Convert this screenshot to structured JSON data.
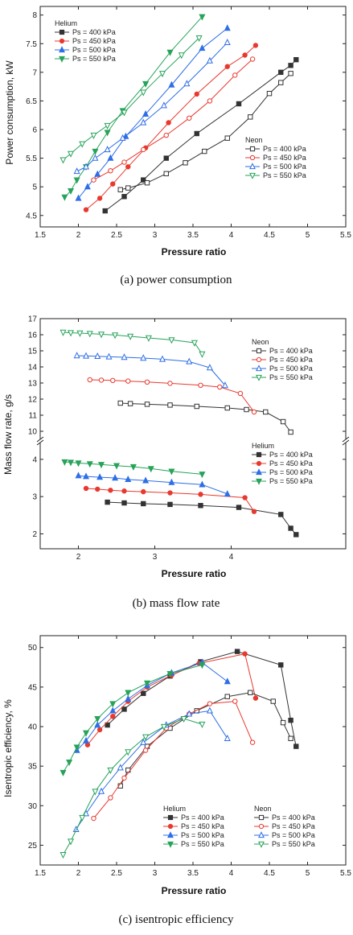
{
  "chart_data": [
    {
      "id": "a",
      "type": "line",
      "caption": "(a)  power  consumption",
      "xlabel": "Pressure ratio",
      "ylabel": "Power consumption, kW",
      "xlim": [
        1.5,
        5.5
      ],
      "ylim": [
        4.3,
        8.15
      ],
      "xticks": [
        "1.5",
        "2",
        "2.5",
        "3",
        "3.5",
        "4",
        "4.5",
        "5",
        "5.5"
      ],
      "xtick_values": [
        1.5,
        2,
        2.5,
        3,
        3.5,
        4,
        4.5,
        5,
        5.5
      ],
      "yticks": [
        "4.5",
        "5",
        "5.5",
        "6",
        "6.5",
        "7",
        "7.5",
        "8"
      ],
      "ytick_values": [
        4.5,
        5,
        5.5,
        6,
        6.5,
        7,
        7.5,
        8
      ],
      "legend_groups": [
        {
          "title": "Helium",
          "position": "top-left",
          "filled": true,
          "series_idx": [
            0,
            1,
            2,
            3
          ]
        },
        {
          "title": "Neon",
          "position": "middle-right",
          "filled": false,
          "series_idx": [
            4,
            5,
            6,
            7
          ]
        }
      ],
      "series": [
        {
          "name": "Ps = 400 kPa",
          "color": "#333333",
          "marker": "square",
          "filled": true,
          "x": [
            2.35,
            2.6,
            2.85,
            3.15,
            3.55,
            4.1,
            4.65,
            4.78,
            4.85
          ],
          "y": [
            4.58,
            4.83,
            5.12,
            5.5,
            5.93,
            6.45,
            7.0,
            7.12,
            7.22
          ]
        },
        {
          "name": "Ps = 450 kPa",
          "color": "#e8392f",
          "marker": "circle",
          "filled": true,
          "x": [
            2.1,
            2.28,
            2.45,
            2.65,
            2.88,
            3.18,
            3.55,
            3.95,
            4.18,
            4.32
          ],
          "y": [
            4.6,
            4.8,
            5.05,
            5.35,
            5.68,
            6.12,
            6.62,
            7.1,
            7.3,
            7.47
          ]
        },
        {
          "name": "Ps = 500 kPa",
          "color": "#2e6ee6",
          "marker": "triangle-up",
          "filled": true,
          "x": [
            2.0,
            2.12,
            2.25,
            2.42,
            2.62,
            2.88,
            3.22,
            3.62,
            3.95
          ],
          "y": [
            4.8,
            5.0,
            5.22,
            5.5,
            5.88,
            6.27,
            6.78,
            7.42,
            7.77
          ]
        },
        {
          "name": "Ps = 550 kPa",
          "color": "#27a35a",
          "marker": "triangle-down",
          "filled": true,
          "x": [
            1.82,
            1.9,
            1.98,
            2.1,
            2.22,
            2.38,
            2.58,
            2.88,
            3.2,
            3.62
          ],
          "y": [
            4.82,
            4.93,
            5.12,
            5.35,
            5.62,
            5.95,
            6.33,
            6.8,
            7.35,
            7.97
          ]
        },
        {
          "name": "Ps = 400 kPa",
          "color": "#333333",
          "marker": "square",
          "filled": false,
          "x": [
            2.55,
            2.65,
            2.9,
            3.15,
            3.4,
            3.65,
            3.95,
            4.25,
            4.5,
            4.65,
            4.78
          ],
          "y": [
            4.95,
            4.98,
            5.07,
            5.23,
            5.42,
            5.62,
            5.85,
            6.22,
            6.63,
            6.82,
            6.98
          ]
        },
        {
          "name": "Ps = 450 kPa",
          "color": "#e8392f",
          "marker": "circle",
          "filled": false,
          "x": [
            2.2,
            2.42,
            2.6,
            2.85,
            3.15,
            3.45,
            3.72,
            4.05,
            4.28
          ],
          "y": [
            5.12,
            5.28,
            5.43,
            5.65,
            5.9,
            6.2,
            6.5,
            6.95,
            7.23
          ]
        },
        {
          "name": "Ps = 500 kPa",
          "color": "#2e6ee6",
          "marker": "triangle-up",
          "filled": false,
          "x": [
            1.98,
            2.1,
            2.22,
            2.38,
            2.58,
            2.85,
            3.12,
            3.42,
            3.72,
            3.95
          ],
          "y": [
            5.27,
            5.35,
            5.5,
            5.65,
            5.85,
            6.12,
            6.42,
            6.8,
            7.2,
            7.52
          ]
        },
        {
          "name": "Ps = 550 kPa",
          "color": "#27a35a",
          "marker": "triangle-down",
          "filled": false,
          "x": [
            1.8,
            1.9,
            2.05,
            2.2,
            2.38,
            2.6,
            2.85,
            3.1,
            3.35,
            3.58
          ],
          "y": [
            5.47,
            5.58,
            5.75,
            5.9,
            6.07,
            6.3,
            6.65,
            6.98,
            7.3,
            7.6
          ]
        }
      ]
    },
    {
      "id": "b",
      "type": "line",
      "caption": "(b)  mass  flow  rate",
      "xlabel": "Pressure ratio",
      "ylabel": "Mass flow rate, g/s",
      "xlim": [
        1.5,
        5.5
      ],
      "segments": [
        {
          "ylim": [
            9.5,
            17.0
          ],
          "yticks": [
            "10",
            "11",
            "12",
            "13",
            "14",
            "15",
            "16",
            "17"
          ],
          "ytick_values": [
            10,
            11,
            12,
            13,
            14,
            15,
            16,
            17
          ]
        },
        {
          "ylim": [
            1.6,
            4.45
          ],
          "yticks": [
            "2",
            "3",
            "4"
          ],
          "ytick_values": [
            2,
            3,
            4
          ]
        }
      ],
      "xticks": [
        "2",
        "3",
        "4"
      ],
      "xtick_values": [
        2,
        3,
        4
      ],
      "legend_groups": [
        {
          "title": "Neon",
          "position": "top-right",
          "filled": false,
          "series_idx": [
            4,
            5,
            6,
            7
          ]
        },
        {
          "title": "Helium",
          "position": "middle-right",
          "filled": true,
          "series_idx": [
            0,
            1,
            2,
            3
          ]
        }
      ],
      "series": [
        {
          "name": "Ps = 400 kPa",
          "color": "#333333",
          "marker": "square",
          "filled": true,
          "segment": 1,
          "x": [
            2.38,
            2.6,
            2.85,
            3.2,
            3.6,
            4.1,
            4.65,
            4.78,
            4.85
          ],
          "y": [
            2.85,
            2.83,
            2.81,
            2.79,
            2.76,
            2.71,
            2.52,
            2.15,
            1.98
          ]
        },
        {
          "name": "Ps = 450 kPa",
          "color": "#e8392f",
          "marker": "circle",
          "filled": true,
          "segment": 1,
          "x": [
            2.1,
            2.25,
            2.42,
            2.6,
            2.85,
            3.2,
            3.6,
            4.18,
            4.3
          ],
          "y": [
            3.22,
            3.2,
            3.17,
            3.15,
            3.13,
            3.1,
            3.06,
            2.97,
            2.6
          ]
        },
        {
          "name": "Ps = 500 kPa",
          "color": "#2e6ee6",
          "marker": "triangle-up",
          "filled": true,
          "segment": 1,
          "x": [
            2.0,
            2.1,
            2.28,
            2.48,
            2.65,
            2.88,
            3.22,
            3.62,
            3.95
          ],
          "y": [
            3.56,
            3.54,
            3.52,
            3.5,
            3.46,
            3.43,
            3.38,
            3.32,
            3.07
          ]
        },
        {
          "name": "Ps = 550 kPa",
          "color": "#27a35a",
          "marker": "triangle-down",
          "filled": true,
          "segment": 1,
          "x": [
            1.82,
            1.9,
            2.0,
            2.15,
            2.3,
            2.5,
            2.72,
            2.95,
            3.22,
            3.62
          ],
          "y": [
            3.93,
            3.92,
            3.9,
            3.88,
            3.86,
            3.83,
            3.8,
            3.75,
            3.68,
            3.6
          ]
        },
        {
          "name": "Ps = 400 kPa",
          "color": "#333333",
          "marker": "square",
          "filled": false,
          "segment": 0,
          "x": [
            2.55,
            2.68,
            2.9,
            3.2,
            3.55,
            3.95,
            4.2,
            4.45,
            4.68,
            4.78
          ],
          "y": [
            11.75,
            11.72,
            11.68,
            11.63,
            11.55,
            11.45,
            11.35,
            11.2,
            10.6,
            9.95
          ]
        },
        {
          "name": "Ps = 450 kPa",
          "color": "#e8392f",
          "marker": "circle",
          "filled": false,
          "segment": 0,
          "x": [
            2.15,
            2.3,
            2.45,
            2.65,
            2.9,
            3.2,
            3.6,
            3.85,
            4.12,
            4.3
          ],
          "y": [
            13.2,
            13.18,
            13.16,
            13.12,
            13.06,
            12.98,
            12.86,
            12.75,
            12.35,
            11.2
          ]
        },
        {
          "name": "Ps = 500 kPa",
          "color": "#2e6ee6",
          "marker": "triangle-up",
          "filled": false,
          "segment": 0,
          "x": [
            1.98,
            2.1,
            2.25,
            2.4,
            2.6,
            2.85,
            3.1,
            3.45,
            3.72,
            3.92
          ],
          "y": [
            14.7,
            14.68,
            14.66,
            14.63,
            14.6,
            14.55,
            14.48,
            14.33,
            13.95,
            12.85
          ]
        },
        {
          "name": "Ps = 550 kPa",
          "color": "#27a35a",
          "marker": "triangle-down",
          "filled": false,
          "segment": 0,
          "x": [
            1.8,
            1.9,
            2.02,
            2.15,
            2.3,
            2.48,
            2.68,
            2.92,
            3.22,
            3.52,
            3.62
          ],
          "y": [
            16.15,
            16.12,
            16.1,
            16.07,
            16.03,
            15.98,
            15.9,
            15.8,
            15.68,
            15.5,
            14.8
          ]
        }
      ]
    },
    {
      "id": "c",
      "type": "line",
      "caption": "(c)  isentropic  efficiency",
      "xlabel": "Pressure ratio",
      "ylabel": "Isentropic efficiency, %",
      "xlim": [
        1.5,
        5.5
      ],
      "ylim": [
        22.5,
        51.5
      ],
      "xticks": [
        "1.5",
        "2",
        "2.5",
        "3",
        "3.5",
        "4",
        "4.5",
        "5",
        "5.5"
      ],
      "xtick_values": [
        1.5,
        2,
        2.5,
        3,
        3.5,
        4,
        4.5,
        5,
        5.5
      ],
      "yticks": [
        "25",
        "30",
        "35",
        "40",
        "45",
        "50"
      ],
      "ytick_values": [
        25,
        30,
        35,
        40,
        45,
        50
      ],
      "legend_groups": [
        {
          "title": "Helium",
          "position": "bottom-center-left",
          "filled": true,
          "series_idx": [
            0,
            1,
            2,
            3
          ]
        },
        {
          "title": "Neon",
          "position": "bottom-right",
          "filled": false,
          "series_idx": [
            4,
            5,
            6,
            7
          ]
        }
      ],
      "series": [
        {
          "name": "Ps = 400 kPa",
          "color": "#333333",
          "marker": "square",
          "filled": true,
          "x": [
            2.38,
            2.6,
            2.85,
            3.2,
            3.6,
            4.08,
            4.65,
            4.78,
            4.85
          ],
          "y": [
            40.2,
            42.2,
            44.2,
            46.4,
            48.2,
            49.5,
            47.8,
            40.8,
            37.5
          ]
        },
        {
          "name": "Ps = 450 kPa",
          "color": "#e8392f",
          "marker": "circle",
          "filled": true,
          "x": [
            2.12,
            2.28,
            2.45,
            2.65,
            2.9,
            3.22,
            3.58,
            4.18,
            4.32
          ],
          "y": [
            37.7,
            39.6,
            41.3,
            43.2,
            45.0,
            46.5,
            48.0,
            49.2,
            43.6
          ]
        },
        {
          "name": "Ps = 500 kPa",
          "color": "#2e6ee6",
          "marker": "triangle-up",
          "filled": true,
          "x": [
            1.98,
            2.1,
            2.25,
            2.45,
            2.65,
            2.9,
            3.22,
            3.62,
            3.95
          ],
          "y": [
            37.0,
            38.2,
            40.2,
            42.0,
            43.5,
            45.2,
            46.8,
            48.1,
            45.7
          ]
        },
        {
          "name": "Ps = 550 kPa",
          "color": "#27a35a",
          "marker": "triangle-down",
          "filled": true,
          "x": [
            1.8,
            1.88,
            1.98,
            2.1,
            2.25,
            2.45,
            2.65,
            2.9,
            3.2,
            3.62
          ],
          "y": [
            34.2,
            35.5,
            37.4,
            39.2,
            41.0,
            42.9,
            44.3,
            45.5,
            46.7,
            47.8
          ]
        },
        {
          "name": "Ps = 400 kPa",
          "color": "#333333",
          "marker": "square",
          "filled": false,
          "x": [
            2.55,
            2.65,
            2.9,
            3.2,
            3.55,
            3.95,
            4.25,
            4.55,
            4.68,
            4.78
          ],
          "y": [
            32.5,
            34.5,
            37.5,
            39.8,
            42.0,
            43.8,
            44.3,
            43.2,
            40.5,
            38.5
          ]
        },
        {
          "name": "Ps = 450 kPa",
          "color": "#e8392f",
          "marker": "circle",
          "filled": false,
          "x": [
            2.2,
            2.42,
            2.6,
            2.88,
            3.15,
            3.45,
            3.72,
            4.05,
            4.28
          ],
          "y": [
            28.4,
            31.0,
            33.5,
            37.0,
            39.8,
            41.6,
            42.9,
            43.2,
            38.0
          ]
        },
        {
          "name": "Ps = 500 kPa",
          "color": "#2e6ee6",
          "marker": "triangle-up",
          "filled": false,
          "x": [
            1.97,
            2.1,
            2.3,
            2.55,
            2.85,
            3.15,
            3.45,
            3.72,
            3.95
          ],
          "y": [
            27.0,
            29.0,
            31.8,
            34.8,
            38.0,
            40.2,
            41.6,
            42.0,
            38.5
          ]
        },
        {
          "name": "Ps = 550 kPa",
          "color": "#27a35a",
          "marker": "triangle-down",
          "filled": false,
          "x": [
            1.8,
            1.9,
            2.05,
            2.22,
            2.42,
            2.65,
            2.88,
            3.12,
            3.38,
            3.62
          ],
          "y": [
            23.8,
            25.5,
            28.5,
            31.8,
            34.5,
            36.8,
            38.7,
            40.0,
            41.0,
            40.3
          ]
        }
      ]
    }
  ]
}
